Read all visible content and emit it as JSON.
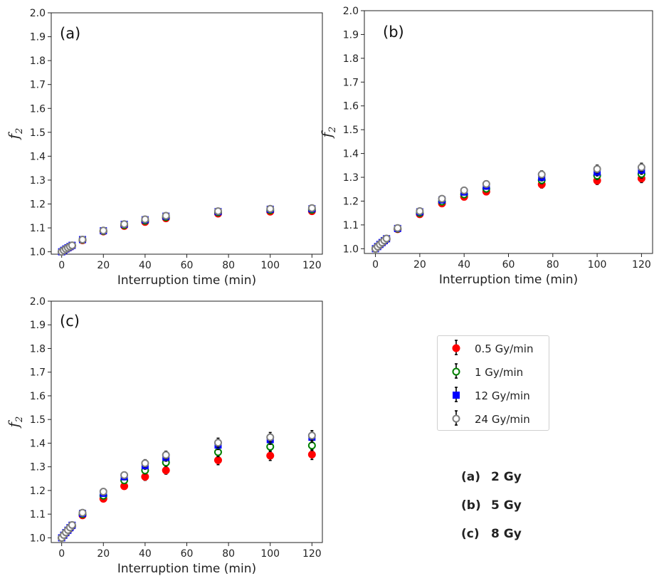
{
  "chart_data": [
    {
      "type": "scatter",
      "panel_label": "(a)",
      "xlabel": "Interruption time (min)",
      "ylabel": "f",
      "ylabel_subscript": "2",
      "xlim": [
        -5,
        125
      ],
      "ylim": [
        0.99,
        2.0
      ],
      "xticks": [
        "0",
        "20",
        "40",
        "60",
        "80",
        "100",
        "120"
      ],
      "yticks": [
        "1.0",
        "1.1",
        "1.2",
        "1.3",
        "1.4",
        "1.5",
        "1.6",
        "1.7",
        "1.8",
        "1.9",
        "2.0"
      ],
      "x": [
        0,
        1,
        2,
        3,
        4,
        5,
        10,
        20,
        30,
        40,
        50,
        75,
        100,
        120
      ],
      "series": [
        {
          "name": "0.5 Gy/min",
          "values": [
            1.0,
            1.005,
            1.01,
            1.015,
            1.02,
            1.025,
            1.048,
            1.085,
            1.108,
            1.125,
            1.14,
            1.16,
            1.168,
            1.17
          ]
        },
        {
          "name": "1 Gy/min",
          "values": [
            1.0,
            1.006,
            1.011,
            1.016,
            1.021,
            1.026,
            1.05,
            1.087,
            1.112,
            1.13,
            1.145,
            1.165,
            1.174,
            1.176
          ]
        },
        {
          "name": "12 Gy/min",
          "values": [
            1.0,
            1.006,
            1.012,
            1.017,
            1.022,
            1.027,
            1.051,
            1.088,
            1.115,
            1.134,
            1.149,
            1.168,
            1.178,
            1.18
          ]
        },
        {
          "name": "24 Gy/min",
          "values": [
            1.0,
            1.006,
            1.012,
            1.017,
            1.022,
            1.027,
            1.051,
            1.089,
            1.116,
            1.136,
            1.151,
            1.17,
            1.18,
            1.183
          ]
        }
      ],
      "error": [
        0.004,
        0.004,
        0.004,
        0.004,
        0.004,
        0.004,
        0.005,
        0.006,
        0.007,
        0.008,
        0.008,
        0.01,
        0.01,
        0.01
      ]
    },
    {
      "type": "scatter",
      "panel_label": "(b)",
      "xlabel": "Interruption time (min)",
      "ylabel": "f",
      "ylabel_subscript": "2",
      "xlim": [
        -5,
        125
      ],
      "ylim": [
        0.98,
        2.0
      ],
      "xticks": [
        "0",
        "20",
        "40",
        "60",
        "80",
        "100",
        "120"
      ],
      "yticks": [
        "1.0",
        "1.1",
        "1.2",
        "1.3",
        "1.4",
        "1.5",
        "1.6",
        "1.7",
        "1.8",
        "1.9",
        "2.0"
      ],
      "x": [
        0,
        1,
        2,
        3,
        4,
        5,
        10,
        20,
        30,
        40,
        50,
        75,
        100,
        120
      ],
      "series": [
        {
          "name": "0.5 Gy/min",
          "values": [
            1.0,
            1.008,
            1.016,
            1.024,
            1.032,
            1.04,
            1.082,
            1.145,
            1.19,
            1.218,
            1.24,
            1.27,
            1.286,
            1.295
          ]
        },
        {
          "name": "1 Gy/min",
          "values": [
            1.0,
            1.009,
            1.017,
            1.025,
            1.033,
            1.041,
            1.084,
            1.15,
            1.198,
            1.228,
            1.252,
            1.288,
            1.307,
            1.314
          ]
        },
        {
          "name": "12 Gy/min",
          "values": [
            1.0,
            1.009,
            1.018,
            1.026,
            1.034,
            1.042,
            1.085,
            1.155,
            1.205,
            1.238,
            1.263,
            1.3,
            1.322,
            1.33
          ]
        },
        {
          "name": "24 Gy/min",
          "values": [
            1.0,
            1.009,
            1.018,
            1.026,
            1.035,
            1.043,
            1.087,
            1.158,
            1.21,
            1.245,
            1.272,
            1.312,
            1.335,
            1.342
          ]
        }
      ],
      "error": [
        0.004,
        0.004,
        0.005,
        0.005,
        0.005,
        0.005,
        0.007,
        0.009,
        0.01,
        0.012,
        0.013,
        0.015,
        0.016,
        0.017
      ]
    },
    {
      "type": "scatter",
      "panel_label": "(c)",
      "xlabel": "Interruption time (min)",
      "ylabel": "f",
      "ylabel_subscript": "2",
      "xlim": [
        -5,
        125
      ],
      "ylim": [
        0.98,
        2.0
      ],
      "xticks": [
        "0",
        "20",
        "40",
        "60",
        "80",
        "100",
        "120"
      ],
      "yticks": [
        "1.0",
        "1.1",
        "1.2",
        "1.3",
        "1.4",
        "1.5",
        "1.6",
        "1.7",
        "1.8",
        "1.9",
        "2.0"
      ],
      "x": [
        0,
        1,
        2,
        3,
        4,
        5,
        10,
        20,
        30,
        40,
        50,
        75,
        100,
        120
      ],
      "series": [
        {
          "name": "0.5 Gy/min",
          "values": [
            1.0,
            1.01,
            1.02,
            1.03,
            1.04,
            1.05,
            1.095,
            1.165,
            1.218,
            1.258,
            1.285,
            1.328,
            1.347,
            1.352
          ]
        },
        {
          "name": "1 Gy/min",
          "values": [
            1.0,
            1.011,
            1.021,
            1.031,
            1.041,
            1.051,
            1.1,
            1.178,
            1.243,
            1.285,
            1.318,
            1.362,
            1.385,
            1.39
          ]
        },
        {
          "name": "12 Gy/min",
          "values": [
            1.0,
            1.011,
            1.022,
            1.032,
            1.043,
            1.053,
            1.103,
            1.188,
            1.258,
            1.305,
            1.34,
            1.392,
            1.415,
            1.425
          ]
        },
        {
          "name": "24 Gy/min",
          "values": [
            1.0,
            1.012,
            1.023,
            1.033,
            1.044,
            1.054,
            1.106,
            1.195,
            1.265,
            1.315,
            1.35,
            1.402,
            1.425,
            1.432
          ]
        }
      ],
      "error": [
        0.005,
        0.005,
        0.006,
        0.006,
        0.006,
        0.006,
        0.008,
        0.011,
        0.013,
        0.015,
        0.016,
        0.019,
        0.02,
        0.021
      ]
    }
  ],
  "series_styles": [
    {
      "name": "0.5 Gy/min",
      "marker": "filled-circle",
      "fill": "#ff0000",
      "stroke": "#ff0000"
    },
    {
      "name": "1 Gy/min",
      "marker": "open-circle",
      "fill": "#ffffff",
      "stroke": "#008000"
    },
    {
      "name": "12 Gy/min",
      "marker": "filled-square",
      "fill": "#0000ff",
      "stroke": "#0000ff"
    },
    {
      "name": "24 Gy/min",
      "marker": "open-circle",
      "fill": "#ffffff",
      "stroke": "#7f7f7f"
    }
  ],
  "legend": {
    "placement": "right of panel (c)",
    "items": [
      {
        "label": "0.5 Gy/min"
      },
      {
        "label": "1 Gy/min"
      },
      {
        "label": "12 Gy/min"
      },
      {
        "label": "24 Gy/min"
      }
    ]
  },
  "dose_key": [
    {
      "tag": "(a)",
      "dose": "2 Gy"
    },
    {
      "tag": "(b)",
      "dose": "5 Gy"
    },
    {
      "tag": "(c)",
      "dose": "8 Gy"
    }
  ]
}
